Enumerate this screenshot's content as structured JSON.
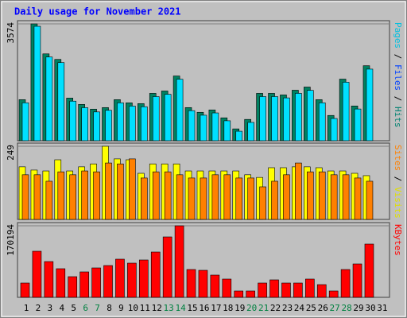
{
  "chart_data": {
    "type": "bar",
    "title": "Daily usage for November 2021",
    "categories": [
      "1",
      "2",
      "3",
      "4",
      "5",
      "6",
      "7",
      "8",
      "9",
      "10",
      "11",
      "12",
      "13",
      "14",
      "15",
      "16",
      "17",
      "18",
      "19",
      "20",
      "21",
      "22",
      "23",
      "24",
      "25",
      "26",
      "27",
      "28",
      "29",
      "30",
      "31"
    ],
    "panels": [
      {
        "ylim": [
          0,
          3574
        ],
        "yticks": [
          3574
        ],
        "separator": "/",
        "legend": [
          {
            "name": "Pages",
            "color": "#00c0e0"
          },
          {
            "name": "Files",
            "color": "#0040ff"
          },
          {
            "name": "Hits",
            "color": "#008070"
          }
        ],
        "series": [
          {
            "color": "#008060",
            "values": [
              1256,
              3574,
              2656,
              2487,
              1304,
              1111,
              966,
              1014,
              1256,
              1159,
              1135,
              1449,
              1521,
              1980,
              1014,
              869,
              942,
              700,
              362,
              652,
              1449,
              1449,
              1401,
              1545,
              1642,
              1256,
              773,
              1884,
              1063,
              2294,
              null
            ]
          },
          {
            "color": "#00e0ff",
            "values": [
              1160,
              3500,
              2560,
              2390,
              1210,
              1010,
              880,
              930,
              1160,
              1060,
              1040,
              1350,
              1420,
              1880,
              920,
              780,
              850,
              610,
              290,
              560,
              1350,
              1350,
              1310,
              1450,
              1540,
              1160,
              680,
              1790,
              970,
              2190,
              null
            ]
          }
        ]
      },
      {
        "ylim": [
          0,
          249
        ],
        "yticks": [
          249
        ],
        "separator": "/",
        "legend": [
          {
            "name": "Sites",
            "color": "#ff8000"
          },
          {
            "name": "Visits",
            "color": "#e0e000"
          }
        ],
        "series": [
          {
            "color": "#ffff00",
            "values": [
              179,
              168,
              165,
              203,
              165,
              179,
              189,
              249,
              206,
              203,
              157,
              189,
              189,
              189,
              165,
              165,
              165,
              165,
              165,
              152,
              143,
              176,
              176,
              179,
              179,
              176,
              165,
              165,
              157,
              149,
              null
            ]
          },
          {
            "color": "#ff8000",
            "values": [
              152,
              152,
              130,
              162,
              152,
              165,
              162,
              192,
              189,
              206,
              141,
              162,
              162,
              152,
              141,
              141,
              152,
              152,
              141,
              141,
              111,
              130,
              152,
              192,
              162,
              162,
              152,
              152,
              141,
              130,
              null
            ]
          }
        ]
      },
      {
        "ylim": [
          0,
          170194
        ],
        "yticks": [
          170194
        ],
        "separator": null,
        "legend": [
          {
            "name": "KBytes",
            "color": "#ff0000"
          }
        ],
        "series": [
          {
            "color": "#ff0000",
            "values": [
              34035,
              109679,
              85097,
              68078,
              49165,
              60514,
              69969,
              75642,
              90770,
              81314,
              88878,
              107789,
              143719,
              170194,
              66187,
              64295,
              52949,
              43494,
              15128,
              15128,
              34035,
              41602,
              34035,
              34035,
              43494,
              30257,
              15128,
              66187,
              79423,
              126697,
              null
            ]
          }
        ]
      }
    ]
  }
}
